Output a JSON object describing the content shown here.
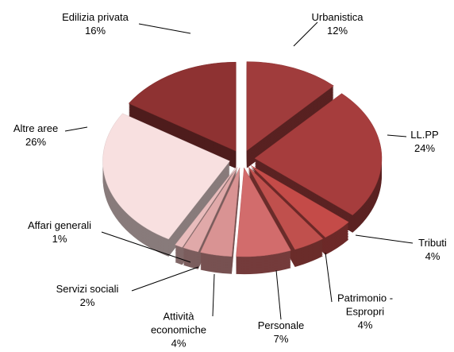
{
  "chart_data": {
    "type": "pie3d",
    "categories": [
      "Urbanistica",
      "LL.PP",
      "Tributi",
      "Patrimonio - Espropri",
      "Personale",
      "Attività economiche",
      "Servizi sociali",
      "Affari generali",
      "Altre aree",
      "Edilizia privata"
    ],
    "values": [
      12,
      24,
      4,
      4,
      7,
      4,
      2,
      1,
      26,
      16
    ],
    "value_labels": [
      "12%",
      "24%",
      "4%",
      "4%",
      "7%",
      "4%",
      "2%",
      "1%",
      "26%",
      "16%"
    ],
    "colors": [
      "#a03c3c",
      "#a63d3d",
      "#c44b48",
      "#c0504d",
      "#d26c6c",
      "#d99393",
      "#e0a9a9",
      "#e9bcbc",
      "#f8e0e0",
      "#8e3232"
    ]
  }
}
